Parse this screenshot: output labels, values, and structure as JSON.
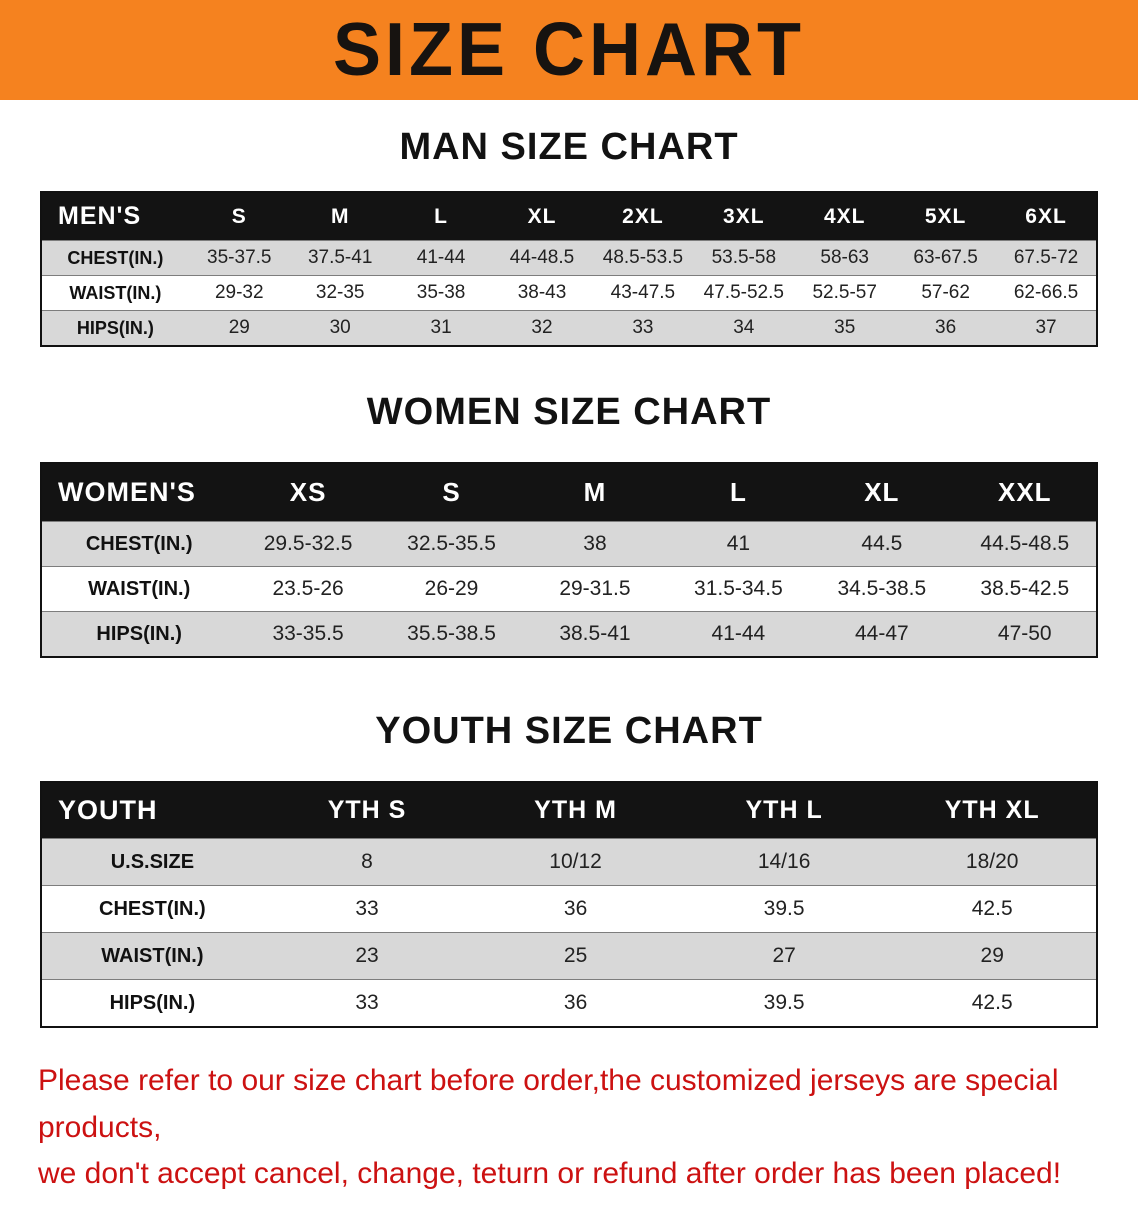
{
  "banner": {
    "title": "SIZE CHART",
    "bg_color": "#f5821f",
    "text_color": "#171310"
  },
  "footer": {
    "color": "#cc1111",
    "lines": [
      "Please refer to our size chart before order,the customized jerseys are special products,",
      "we don't accept cancel, change, teturn or refund after order has been placed!"
    ]
  },
  "chart_data": [
    {
      "type": "table",
      "title": "MAN SIZE CHART",
      "corner_label": "MEN'S",
      "columns": [
        "S",
        "M",
        "L",
        "XL",
        "2XL",
        "3XL",
        "4XL",
        "5XL",
        "6XL"
      ],
      "rows": [
        {
          "label": "CHEST(IN.)",
          "values": [
            "35-37.5",
            "37.5-41",
            "41-44",
            "44-48.5",
            "48.5-53.5",
            "53.5-58",
            "58-63",
            "63-67.5",
            "67.5-72"
          ]
        },
        {
          "label": "WAIST(IN.)",
          "values": [
            "29-32",
            "32-35",
            "35-38",
            "38-43",
            "43-47.5",
            "47.5-52.5",
            "52.5-57",
            "57-62",
            "62-66.5"
          ]
        },
        {
          "label": "HIPS(IN.)",
          "values": [
            "29",
            "30",
            "31",
            "32",
            "33",
            "34",
            "35",
            "36",
            "37"
          ]
        }
      ]
    },
    {
      "type": "table",
      "title": "WOMEN SIZE CHART",
      "corner_label": "WOMEN'S",
      "columns": [
        "XS",
        "S",
        "M",
        "L",
        "XL",
        "XXL"
      ],
      "rows": [
        {
          "label": "CHEST(IN.)",
          "values": [
            "29.5-32.5",
            "32.5-35.5",
            "38",
            "41",
            "44.5",
            "44.5-48.5"
          ]
        },
        {
          "label": "WAIST(IN.)",
          "values": [
            "23.5-26",
            "26-29",
            "29-31.5",
            "31.5-34.5",
            "34.5-38.5",
            "38.5-42.5"
          ]
        },
        {
          "label": "HIPS(IN.)",
          "values": [
            "33-35.5",
            "35.5-38.5",
            "38.5-41",
            "41-44",
            "44-47",
            "47-50"
          ]
        }
      ]
    },
    {
      "type": "table",
      "title": "YOUTH SIZE CHART",
      "corner_label": "YOUTH",
      "columns": [
        "YTH S",
        "YTH M",
        "YTH L",
        "YTH XL"
      ],
      "rows": [
        {
          "label": "U.S.SIZE",
          "values": [
            "8",
            "10/12",
            "14/16",
            "18/20"
          ]
        },
        {
          "label": "CHEST(IN.)",
          "values": [
            "33",
            "36",
            "39.5",
            "42.5"
          ]
        },
        {
          "label": "WAIST(IN.)",
          "values": [
            "23",
            "25",
            "27",
            "29"
          ]
        },
        {
          "label": "HIPS(IN.)",
          "values": [
            "33",
            "36",
            "39.5",
            "42.5"
          ]
        }
      ]
    }
  ]
}
